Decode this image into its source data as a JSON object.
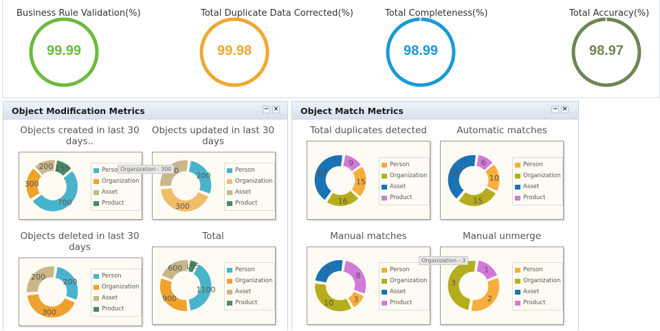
{
  "kpis": [
    {
      "title": "Business Rule Validation(%)",
      "value": "99.99",
      "percent": 99.99,
      "color": "#6cbb3c"
    },
    {
      "title": "Total Duplicate Data Corrected(%)",
      "value": "99.98",
      "percent": 99.98,
      "color": "#f0a830"
    },
    {
      "title": "Total Completeness(%)",
      "value": "98.99",
      "percent": 98.99,
      "color": "#1a9ad6"
    },
    {
      "title": "Total Accuracy(%)",
      "value": "98.97",
      "percent": 98.97,
      "color": "#6e8652"
    }
  ],
  "panels": {
    "modification": {
      "title": "Object Modification Metrics",
      "minimize_label": "−",
      "close_label": "×"
    },
    "match": {
      "title": "Object Match Metrics",
      "minimize_label": "−",
      "close_label": "×"
    }
  },
  "tooltips": {
    "modification": "Organization - 300",
    "match": "Organization - 3"
  },
  "chart_data": [
    {
      "type": "pie",
      "id": "created",
      "title": "Objects created in last 30 days..",
      "categories": [
        "Person",
        "Organization",
        "Asset",
        "Product"
      ],
      "values": [
        700,
        300,
        200,
        155
      ],
      "labels": [
        "700",
        "300",
        "200",
        "155"
      ],
      "colors": [
        "#4ab3cc",
        "#f0a22e",
        "#c9b68a",
        "#4a8a6a"
      ],
      "legend": "right"
    },
    {
      "type": "pie",
      "id": "updated",
      "title": "Objects updated in last 30 days",
      "categories": [
        "Person",
        "Organization",
        "Asset",
        "Product"
      ],
      "values": [
        200,
        300,
        200,
        0
      ],
      "labels": [
        "200",
        "300",
        "200",
        ""
      ],
      "colors": [
        "#4ab3cc",
        "#f0be6a",
        "#c9b68a",
        "#4a8a6a"
      ],
      "legend": "right"
    },
    {
      "type": "pie",
      "id": "deleted",
      "title": "Objects deleted in last 30 days",
      "categories": [
        "Person",
        "Organization",
        "Asset",
        "Product"
      ],
      "values": [
        200,
        300,
        200,
        0
      ],
      "labels": [
        "200",
        "300",
        "200",
        ""
      ],
      "colors": [
        "#4ab3cc",
        "#f0a22e",
        "#c9b68a",
        "#4a8a6a"
      ],
      "legend": "right"
    },
    {
      "type": "pie",
      "id": "total",
      "title": "Total",
      "categories": [
        "Person",
        "Organization",
        "Asset",
        "Product"
      ],
      "values": [
        1100,
        900,
        600,
        155
      ],
      "labels": [
        "1100",
        "900",
        "600",
        "155"
      ],
      "colors": [
        "#4ab3cc",
        "#f0a22e",
        "#c9b68a",
        "#4a8a6a"
      ],
      "legend": "right"
    },
    {
      "type": "pie",
      "id": "duplicates",
      "title": "Total duplicates detected",
      "categories": [
        "Person",
        "Organization",
        "Asset",
        "Product"
      ],
      "values": [
        15,
        16,
        30,
        9
      ],
      "labels": [
        "15",
        "16",
        "30",
        "9"
      ],
      "colors": [
        "#f8ad3c",
        "#b5ad1c",
        "#1a73b5",
        "#d27ad8"
      ],
      "legend": "right"
    },
    {
      "type": "pie",
      "id": "automatic",
      "title": "Automatic matches",
      "categories": [
        "Person",
        "Organization",
        "Asset",
        "Product"
      ],
      "values": [
        10,
        15,
        22,
        6
      ],
      "labels": [
        "10",
        "15",
        "22",
        "6"
      ],
      "colors": [
        "#f8ad3c",
        "#b5ad1c",
        "#1a73b5",
        "#d27ad8"
      ],
      "legend": "right"
    },
    {
      "type": "pie",
      "id": "manual",
      "title": "Manual matches",
      "categories": [
        "Person",
        "Organization",
        "Asset",
        "Product"
      ],
      "values": [
        3,
        10,
        7,
        8
      ],
      "labels": [
        "3",
        "10",
        "7",
        "8"
      ],
      "colors": [
        "#f8ad3c",
        "#b5ad1c",
        "#1a73b5",
        "#d27ad8"
      ],
      "legend": "right"
    },
    {
      "type": "pie",
      "id": "unmerge",
      "title": "Manual unmerge",
      "categories": [
        "Person",
        "Organization",
        "Asset",
        "Product"
      ],
      "values": [
        2,
        3,
        0,
        1
      ],
      "labels": [
        "2",
        "3",
        "",
        "1"
      ],
      "colors": [
        "#f8ad3c",
        "#b5ad1c",
        "#1a73b5",
        "#d27ad8"
      ],
      "legend": "right"
    }
  ]
}
